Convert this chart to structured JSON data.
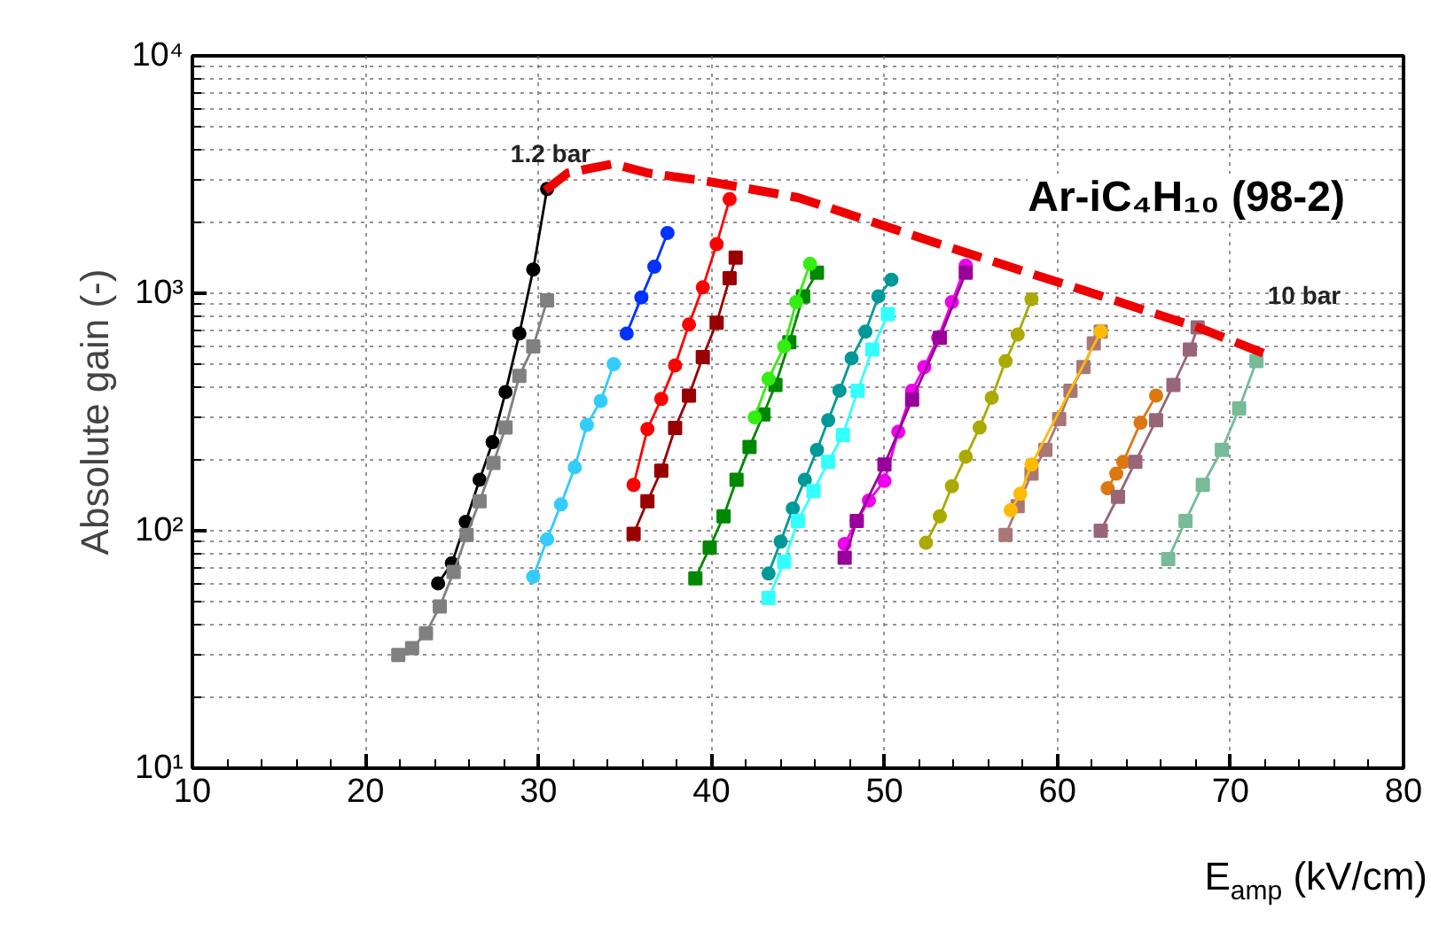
{
  "chart_data": {
    "type": "line",
    "xlabel": "E$_{amp}$ (kV/cm)",
    "ylabel": "Absolute gain (-)",
    "log": "y",
    "grid": true,
    "xlim": [
      10,
      80
    ],
    "xticks": [
      10,
      20,
      30,
      40,
      50,
      60,
      70,
      80
    ],
    "ylim": [
      10,
      10000
    ],
    "yticks": [
      {
        "value": 10,
        "label": "10¹"
      },
      {
        "value": 100,
        "label": "10²"
      },
      {
        "value": 1000,
        "label": "10³"
      },
      {
        "value": 10000,
        "label": "10⁴"
      }
    ],
    "annotations": [
      "Ar-iC₄H₁₀ (98-2)",
      "1.2 bar",
      "10 bar"
    ],
    "series": [
      {
        "color": "#000000",
        "marker": "circle",
        "x": [
          24.2,
          25.0,
          25.8,
          26.6,
          27.35,
          28.1,
          28.9,
          29.7,
          30.5
        ],
        "values": [
          60,
          73,
          109,
          164,
          236,
          384,
          677,
          1259,
          2750
        ]
      },
      {
        "color": "#808080",
        "marker": "square",
        "x": [
          21.9,
          22.7,
          23.5,
          24.3,
          25.1,
          25.85,
          26.6,
          27.4,
          28.1,
          28.9,
          29.7,
          30.5
        ],
        "values": [
          30,
          32,
          37,
          48,
          67,
          96,
          133,
          193,
          272,
          449,
          597,
          933
        ]
      },
      {
        "color": "#33ccff",
        "marker": "circle",
        "x": [
          29.7,
          30.5,
          31.3,
          32.1,
          32.8,
          33.6,
          34.35
        ],
        "values": [
          64,
          92,
          129,
          185,
          279,
          352,
          503
        ]
      },
      {
        "color": "#0033ff",
        "marker": "circle",
        "x": [
          35.1,
          35.95,
          36.7,
          37.46
        ],
        "values": [
          677,
          961,
          1294,
          1795
        ]
      },
      {
        "color": "#ff0000",
        "marker": "circle",
        "x": [
          35.5,
          36.3,
          37.1,
          37.9,
          38.7,
          39.5,
          40.3,
          41.05
        ],
        "values": [
          156,
          268,
          359,
          497,
          738,
          1059,
          1610,
          2490
        ]
      },
      {
        "color": "#990000",
        "marker": "square",
        "x": [
          35.5,
          36.3,
          37.1,
          37.9,
          38.7,
          39.5,
          40.3,
          41.05,
          41.4
        ],
        "values": [
          97,
          133,
          179,
          271,
          371,
          539,
          751,
          1157,
          1412
        ]
      },
      {
        "color": "#008800",
        "marker": "square",
        "x": [
          39.07,
          39.9,
          40.7,
          41.45,
          42.2,
          43.0,
          43.7,
          44.5,
          45.3,
          46.1
        ],
        "values": [
          63,
          85,
          115,
          164,
          225,
          309,
          411,
          622,
          971,
          1222
        ]
      },
      {
        "color": "#33ee11",
        "marker": "circle",
        "x": [
          42.5,
          43.3,
          44.2,
          44.9,
          45.7
        ],
        "values": [
          300,
          436,
          597,
          918,
          1330
        ]
      },
      {
        "color": "#009999",
        "marker": "circle",
        "x": [
          43.3,
          44.0,
          44.7,
          45.4,
          46.1,
          46.75,
          47.4,
          48.1,
          48.9,
          49.65,
          50.4
        ],
        "values": [
          66,
          90,
          124,
          164,
          219,
          292,
          389,
          532,
          689,
          971,
          1141
        ]
      },
      {
        "color": "#33ffff",
        "marker": "square",
        "x": [
          43.3,
          44.2,
          45.0,
          45.9,
          46.75,
          47.6,
          48.45,
          49.3,
          50.2
        ],
        "values": [
          52,
          74,
          110,
          147,
          195,
          253,
          389,
          580,
          818
        ]
      },
      {
        "color": "#ee00ee",
        "marker": "circle",
        "x": [
          47.7,
          48.4,
          49.1,
          50.0,
          50.8,
          51.6,
          52.3,
          53.1,
          53.9,
          54.7
        ],
        "values": [
          88,
          110,
          134,
          162,
          261,
          389,
          489,
          650,
          918,
          1309
        ]
      },
      {
        "color": "#990099",
        "marker": "square",
        "x": [
          47.7,
          48.4,
          50.0,
          51.6,
          53.2,
          54.7
        ],
        "values": [
          77,
          110,
          190,
          357,
          650,
          1222
        ]
      },
      {
        "color": "#aaaa00",
        "marker": "circle",
        "x": [
          52.4,
          53.2,
          53.9,
          54.7,
          55.5,
          56.2,
          57.0,
          57.7,
          58.5
        ],
        "values": [
          89,
          115,
          154,
          205,
          272,
          363,
          518,
          670,
          944
        ]
      },
      {
        "color": "#aa7777",
        "marker": "square",
        "x": [
          57.0,
          57.7,
          58.5,
          59.3,
          60.1,
          60.75,
          61.5,
          62.1,
          62.5
        ],
        "values": [
          96,
          127,
          174,
          219,
          295,
          389,
          489,
          615,
          689
        ]
      },
      {
        "color": "#ffbb00",
        "marker": "circle",
        "x": [
          57.3,
          57.85,
          58.5,
          62.5
        ],
        "values": [
          122,
          143,
          190,
          689
        ]
      },
      {
        "color": "#dd7711",
        "marker": "circle",
        "x": [
          62.9,
          63.4,
          63.8,
          64.8,
          65.7
        ],
        "values": [
          151,
          174,
          195,
          285,
          371
        ]
      },
      {
        "color": "#996677",
        "marker": "square",
        "x": [
          62.5,
          63.5,
          64.5,
          65.7,
          66.7,
          67.65,
          68.1
        ],
        "values": [
          100,
          139,
          195,
          292,
          411,
          580,
          718
        ]
      },
      {
        "color": "#77bb99",
        "marker": "square",
        "x": [
          66.4,
          67.4,
          68.4,
          69.5,
          70.5,
          71.5
        ],
        "values": [
          76,
          110,
          156,
          219,
          327,
          518
        ]
      },
      {
        "color": "#ee0000",
        "marker": "none",
        "line_style": "dashed",
        "x": [
          30.4,
          31.7,
          34.3,
          36.3,
          39.9,
          45.0,
          55.0,
          61.4,
          68.3,
          72.2
        ],
        "values": [
          2710,
          3213,
          3509,
          3213,
          2950,
          2530,
          1459,
          1035,
          710,
          548
        ]
      }
    ]
  }
}
